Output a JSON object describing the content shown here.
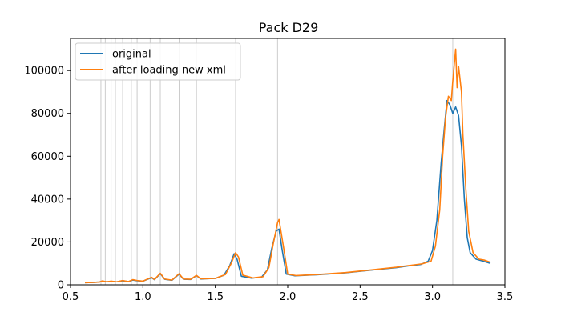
{
  "chart_data": {
    "type": "line",
    "title": "Pack D29",
    "xlabel": "",
    "ylabel": "",
    "xlim": [
      0.5,
      3.5
    ],
    "ylim": [
      0,
      115000
    ],
    "grid": false,
    "legend_location": "top-left",
    "x_ticks": [
      0.5,
      1.0,
      1.5,
      2.0,
      2.5,
      3.0,
      3.5
    ],
    "x_tick_labels": [
      "0.5",
      "1.0",
      "1.5",
      "2.0",
      "2.5",
      "3.0",
      "3.5"
    ],
    "y_ticks": [
      0,
      20000,
      40000,
      60000,
      80000,
      100000
    ],
    "y_tick_labels": [
      "0",
      "20000",
      "40000",
      "60000",
      "80000",
      "100000"
    ],
    "vertical_lines": [
      0.71,
      0.74,
      0.78,
      0.81,
      0.86,
      0.92,
      0.96,
      1.05,
      1.12,
      1.25,
      1.37,
      1.64,
      1.93,
      3.14
    ],
    "vertical_line_color": "#cccccc",
    "series": [
      {
        "name": "original",
        "color": "#1f77b4",
        "points": [
          [
            0.6,
            1000
          ],
          [
            0.65,
            1100
          ],
          [
            0.7,
            1300
          ],
          [
            0.72,
            1700
          ],
          [
            0.75,
            1400
          ],
          [
            0.78,
            1600
          ],
          [
            0.82,
            1400
          ],
          [
            0.86,
            1900
          ],
          [
            0.9,
            1500
          ],
          [
            0.93,
            2200
          ],
          [
            0.96,
            1900
          ],
          [
            1.0,
            1700
          ],
          [
            1.03,
            2500
          ],
          [
            1.06,
            3300
          ],
          [
            1.08,
            2400
          ],
          [
            1.12,
            5200
          ],
          [
            1.15,
            2600
          ],
          [
            1.2,
            2100
          ],
          [
            1.25,
            5000
          ],
          [
            1.28,
            2600
          ],
          [
            1.33,
            2500
          ],
          [
            1.37,
            4300
          ],
          [
            1.4,
            2700
          ],
          [
            1.5,
            3000
          ],
          [
            1.56,
            4500
          ],
          [
            1.6,
            9000
          ],
          [
            1.63,
            14500
          ],
          [
            1.65,
            12000
          ],
          [
            1.68,
            4000
          ],
          [
            1.75,
            3100
          ],
          [
            1.82,
            3600
          ],
          [
            1.86,
            7000
          ],
          [
            1.89,
            17000
          ],
          [
            1.92,
            25000
          ],
          [
            1.94,
            26000
          ],
          [
            1.96,
            17000
          ],
          [
            1.99,
            5000
          ],
          [
            2.05,
            4200
          ],
          [
            2.2,
            4700
          ],
          [
            2.4,
            5600
          ],
          [
            2.6,
            7000
          ],
          [
            2.75,
            8000
          ],
          [
            2.85,
            9000
          ],
          [
            2.92,
            9500
          ],
          [
            2.97,
            11000
          ],
          [
            3.0,
            16000
          ],
          [
            3.03,
            30000
          ],
          [
            3.06,
            57000
          ],
          [
            3.08,
            72000
          ],
          [
            3.1,
            86000
          ],
          [
            3.12,
            84000
          ],
          [
            3.14,
            80000
          ],
          [
            3.16,
            83000
          ],
          [
            3.18,
            79000
          ],
          [
            3.2,
            65000
          ],
          [
            3.22,
            40000
          ],
          [
            3.24,
            22000
          ],
          [
            3.26,
            15000
          ],
          [
            3.3,
            12000
          ],
          [
            3.35,
            11000
          ],
          [
            3.4,
            10000
          ]
        ]
      },
      {
        "name": "after loading new xml",
        "color": "#ff7f0e",
        "points": [
          [
            0.6,
            1000
          ],
          [
            0.65,
            1100
          ],
          [
            0.7,
            1300
          ],
          [
            0.72,
            1800
          ],
          [
            0.75,
            1400
          ],
          [
            0.78,
            1700
          ],
          [
            0.82,
            1400
          ],
          [
            0.86,
            2000
          ],
          [
            0.9,
            1500
          ],
          [
            0.93,
            2400
          ],
          [
            0.96,
            2000
          ],
          [
            1.0,
            1700
          ],
          [
            1.03,
            2600
          ],
          [
            1.06,
            3500
          ],
          [
            1.08,
            2500
          ],
          [
            1.12,
            5400
          ],
          [
            1.15,
            2700
          ],
          [
            1.2,
            2200
          ],
          [
            1.25,
            5200
          ],
          [
            1.28,
            2700
          ],
          [
            1.33,
            2600
          ],
          [
            1.37,
            4400
          ],
          [
            1.4,
            2800
          ],
          [
            1.5,
            3000
          ],
          [
            1.57,
            4800
          ],
          [
            1.61,
            10000
          ],
          [
            1.64,
            15000
          ],
          [
            1.66,
            13000
          ],
          [
            1.69,
            4500
          ],
          [
            1.76,
            3200
          ],
          [
            1.83,
            3800
          ],
          [
            1.87,
            8000
          ],
          [
            1.9,
            19000
          ],
          [
            1.93,
            29000
          ],
          [
            1.94,
            30500
          ],
          [
            1.97,
            18000
          ],
          [
            2.0,
            5000
          ],
          [
            2.06,
            4300
          ],
          [
            2.2,
            4800
          ],
          [
            2.4,
            5700
          ],
          [
            2.6,
            7100
          ],
          [
            2.75,
            8200
          ],
          [
            2.85,
            9100
          ],
          [
            2.93,
            9800
          ],
          [
            2.99,
            11000
          ],
          [
            3.02,
            18000
          ],
          [
            3.05,
            35000
          ],
          [
            3.07,
            60000
          ],
          [
            3.09,
            78000
          ],
          [
            3.11,
            88000
          ],
          [
            3.13,
            86000
          ],
          [
            3.14,
            95000
          ],
          [
            3.16,
            110000
          ],
          [
            3.17,
            92000
          ],
          [
            3.18,
            102000
          ],
          [
            3.2,
            90000
          ],
          [
            3.21,
            70000
          ],
          [
            3.23,
            45000
          ],
          [
            3.25,
            25000
          ],
          [
            3.28,
            15000
          ],
          [
            3.32,
            12000
          ],
          [
            3.36,
            11500
          ],
          [
            3.4,
            10500
          ]
        ]
      }
    ]
  }
}
